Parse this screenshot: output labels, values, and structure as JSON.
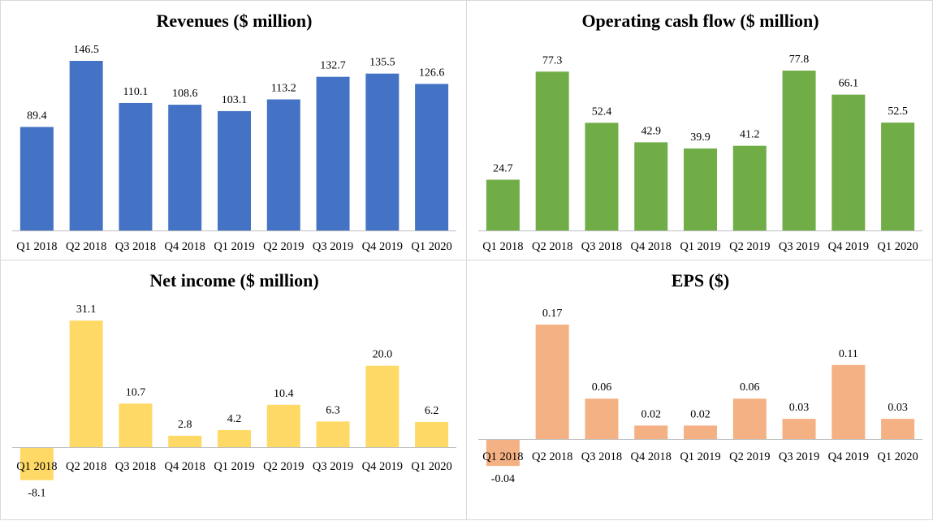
{
  "chart_data": [
    {
      "type": "bar",
      "title": "Revenues ($ million)",
      "categories": [
        "Q1 2018",
        "Q2 2018",
        "Q3 2018",
        "Q4 2018",
        "Q1 2019",
        "Q2 2019",
        "Q3 2019",
        "Q4 2019",
        "Q1 2020"
      ],
      "values": [
        89.4,
        146.5,
        110.1,
        108.6,
        103.1,
        113.2,
        132.7,
        135.5,
        126.6
      ],
      "value_labels": [
        "89.4",
        "146.5",
        "110.1",
        "108.6",
        "103.1",
        "113.2",
        "132.7",
        "135.5",
        "126.6"
      ],
      "color": "#4472C4",
      "ylim": [
        0,
        146.5
      ]
    },
    {
      "type": "bar",
      "title": "Operating cash flow ($ million)",
      "categories": [
        "Q1 2018",
        "Q2 2018",
        "Q3 2018",
        "Q4 2018",
        "Q1 2019",
        "Q2 2019",
        "Q3 2019",
        "Q4 2019",
        "Q1 2020"
      ],
      "values": [
        24.7,
        77.3,
        52.4,
        42.9,
        39.9,
        41.2,
        77.8,
        66.1,
        52.5
      ],
      "value_labels": [
        "24.7",
        "77.3",
        "52.4",
        "42.9",
        "39.9",
        "41.2",
        "77.8",
        "66.1",
        "52.5"
      ],
      "color": "#70AD47",
      "ylim": [
        0,
        77.8
      ]
    },
    {
      "type": "bar",
      "title": "Net income ($ million)",
      "categories": [
        "Q1 2018",
        "Q2 2018",
        "Q3 2018",
        "Q4 2018",
        "Q1 2019",
        "Q2 2019",
        "Q3 2019",
        "Q4 2019",
        "Q1 2020"
      ],
      "values": [
        -8.1,
        31.1,
        10.7,
        2.8,
        4.2,
        10.4,
        6.3,
        20.0,
        6.2
      ],
      "value_labels": [
        "-8.1",
        "31.1",
        "10.7",
        "2.8",
        "4.2",
        "10.4",
        "6.3",
        "20.0",
        "6.2"
      ],
      "color": "#FFD966",
      "ylim": [
        -8.1,
        31.1
      ]
    },
    {
      "type": "bar",
      "title": "EPS ($)",
      "categories": [
        "Q1 2018",
        "Q2 2018",
        "Q3 2018",
        "Q4 2018",
        "Q1 2019",
        "Q2 2019",
        "Q3 2019",
        "Q4 2019",
        "Q1 2020"
      ],
      "values": [
        -0.04,
        0.17,
        0.06,
        0.02,
        0.02,
        0.06,
        0.03,
        0.11,
        0.03
      ],
      "value_labels": [
        "-0.04",
        "0.17",
        "0.06",
        "0.02",
        "0.02",
        "0.06",
        "0.03",
        "0.11",
        "0.03"
      ],
      "color": "#F4B183",
      "ylim": [
        -0.04,
        0.17
      ]
    }
  ]
}
